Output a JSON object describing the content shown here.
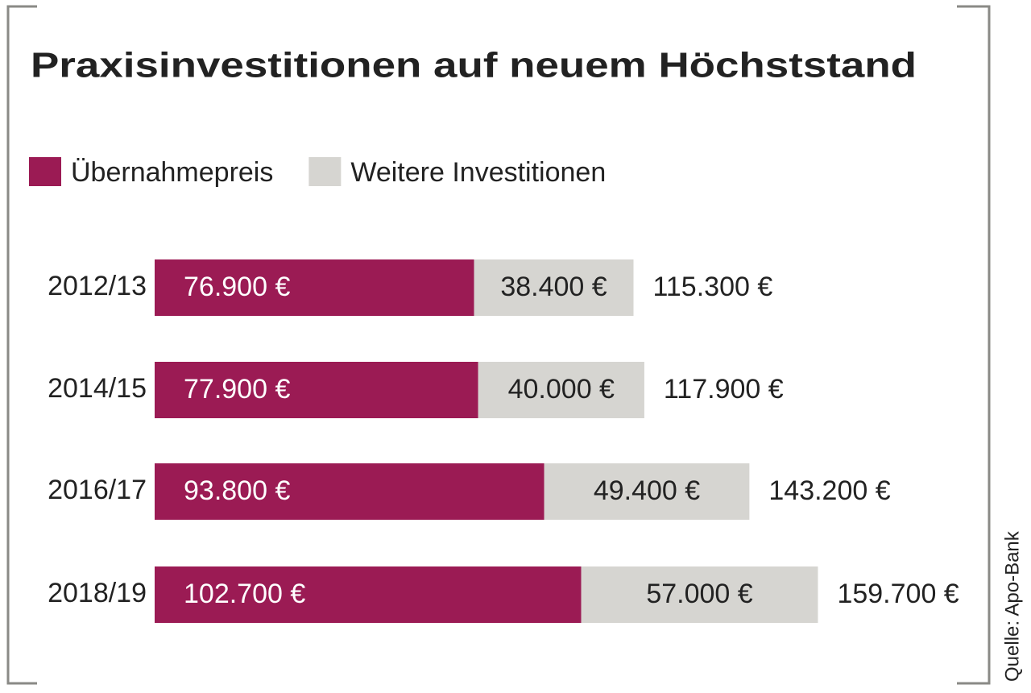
{
  "chart_data": {
    "type": "stacked-bar-horizontal",
    "title": "Praxisinvestitionen auf neuem Höchststand",
    "source": "Quelle: Apo-Bank",
    "categories": [
      "2012/13",
      "2014/15",
      "2016/17",
      "2018/19"
    ],
    "series": [
      {
        "name": "Übernahmepreis",
        "color": "#9b1b54",
        "label_color": "#ffffff",
        "values": [
          76900,
          77900,
          93800,
          102700
        ],
        "value_labels": [
          "76.900 €",
          "77.900 €",
          "93.800 €",
          "102.700 €"
        ]
      },
      {
        "name": "Weitere Investitionen",
        "color": "#d6d5d1",
        "label_color": "#222222",
        "values": [
          38400,
          40000,
          49400,
          57000
        ],
        "value_labels": [
          "38.400 €",
          "40.000 €",
          "49.400 €",
          "57.000 €"
        ]
      }
    ],
    "totals": {
      "values": [
        115300,
        117900,
        143200,
        159700
      ],
      "value_labels": [
        "115.300 €",
        "117.900 €",
        "143.200 €",
        "159.700 €"
      ]
    },
    "xlim": [
      0,
      160000
    ]
  }
}
